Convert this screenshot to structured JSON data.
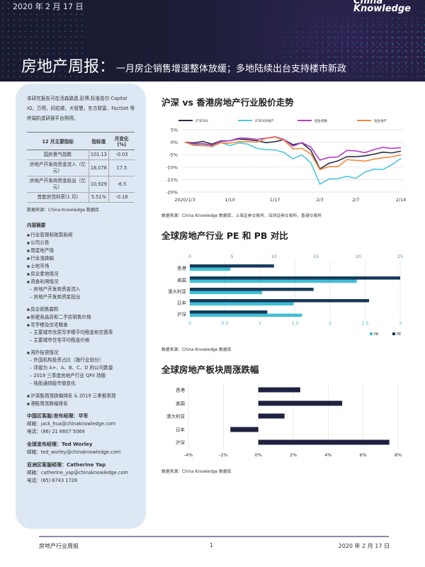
{
  "header": {
    "date": "2020 年 2 月 17 日",
    "logo": "China Knowledge",
    "title": "房地产周报：",
    "subtitle": "一月房企销售增速整体放缓；多地陆续出台支持楼市新政"
  },
  "sidebar": {
    "intro": "本研究报告可在汤森路透,彭博,标准普尔 Capital IQ，万得，同花顺，大智慧，东方财富、FactSet 等终端机或研报平台购得。",
    "table": {
      "headers": [
        "12 月主要指标",
        "指标值",
        "月变化 (%)"
      ],
      "rows": [
        [
          "国房景气指数",
          "101.13",
          "-0.03"
        ],
        [
          "房地产开发商资金流入（亿元）",
          "18,078",
          "17.5"
        ],
        [
          "房地产开发商资金投出（亿元）",
          "10,929",
          "-6.5"
        ],
        [
          "首套房贷利率(1 月)",
          "5.51%",
          "-0.18"
        ]
      ],
      "source": "数据来源：China Knowledge 数据库"
    },
    "toc_title": "内容摘要",
    "toc": [
      {
        "t": "行业宏观和政策新闻",
        "k": "b"
      },
      {
        "t": "公司公告",
        "k": "b"
      },
      {
        "t": "周度地产情",
        "k": "b"
      },
      {
        "t": "行业涨跌幅",
        "k": "b"
      },
      {
        "t": "土地市场",
        "k": "b"
      },
      {
        "t": "房企拿地情况",
        "k": "b"
      },
      {
        "t": "资金利用情况",
        "k": "b"
      },
      {
        "t": "房地产开发商资金流入",
        "k": "s"
      },
      {
        "t": "房地产开发商资金投出",
        "k": "s"
      },
      {
        "t": "",
        "k": "gap"
      },
      {
        "t": "房企销售面积",
        "k": "b"
      },
      {
        "t": "新建商品房和二手房销售价格",
        "k": "b"
      },
      {
        "t": "写字楼及住宅租金",
        "k": "b"
      },
      {
        "t": "主要城市优质写字楼平均租金和空置率",
        "k": "s"
      },
      {
        "t": "主要城市住宅平均租金价格",
        "k": "s"
      },
      {
        "t": "",
        "k": "gap"
      },
      {
        "t": "海外投资情况",
        "k": "b"
      },
      {
        "t": "外国机构投资占比（按行业划分）",
        "k": "s"
      },
      {
        "t": "评级为 A+、A、B、C、D 的公司数量",
        "k": "s"
      },
      {
        "t": "2019 三季度房地产行业 QFII 持股",
        "k": "s"
      },
      {
        "t": "陆股通持股市值变化",
        "k": "s"
      },
      {
        "t": "",
        "k": "gap"
      },
      {
        "t": "沪深股周涨跌幅排名 & 2019 三季报表现",
        "k": "b"
      },
      {
        "t": "港股周涨跌幅排名",
        "k": "b"
      }
    ],
    "contacts": [
      {
        "name": "中国区客服/发布经理：华军",
        "lines": [
          "邮箱：jack_hua@chinaknowledge.com",
          "电话：(86) 21 6607 5069"
        ]
      },
      {
        "name": "全球发布经理：Ted Worley",
        "lines": [
          "邮箱：ted_worley@chinaknowledge.com"
        ]
      },
      {
        "name": "亚洲区客服经理：Catherine Yap",
        "lines": [
          "邮箱：catherine_yap@chinaknowledge.com",
          "电话：(65) 6743 1728"
        ]
      }
    ]
  },
  "chart_data": [
    {
      "type": "line",
      "title": "沪深  vs  香港房地产行业股价走势",
      "x": [
        "2020/1/3",
        "1/6",
        "1/7",
        "1/8",
        "1/9",
        "1/10",
        "1/13",
        "1/14",
        "1/15",
        "1/16",
        "1/17",
        "1/20",
        "1/21",
        "1/22",
        "1/23",
        "2/3",
        "2/4",
        "2/5",
        "2/6",
        "2/7",
        "2/10",
        "2/11",
        "2/12",
        "2/13",
        "2/14"
      ],
      "xticks": [
        "2020/1/3",
        "1/10",
        "1/17",
        "2/3",
        "2/7",
        "2/14"
      ],
      "yticks": [
        "5%",
        "0%",
        "-5%",
        "-10%",
        "-15%",
        "-20%"
      ],
      "ylim": [
        -20,
        5
      ],
      "grid": true,
      "legend": "top",
      "series": [
        {
          "name": "沪深300",
          "color": "#2b2e45",
          "values": [
            0,
            -0.3,
            0.3,
            -0.8,
            0.5,
            0.6,
            1.3,
            1.0,
            0.6,
            -0.2,
            0.2,
            1.0,
            -1.0,
            -0.3,
            -3.3,
            -10.7,
            -8.5,
            -7.5,
            -5.8,
            -5.8,
            -5.5,
            -4.8,
            -4.0,
            -4.3,
            -3.6
          ]
        },
        {
          "name": "沪深300地产",
          "color": "#4ec6d8",
          "values": [
            0,
            -1.0,
            -0.8,
            -1.9,
            -0.1,
            -1.4,
            -0.3,
            -0.8,
            -2.5,
            -3.0,
            -3.1,
            -4.1,
            -6.7,
            -5.1,
            -8.3,
            -16.8,
            -14.8,
            -14.6,
            -13.7,
            -14.5,
            -12.0,
            -10.8,
            -11.0,
            -9.0,
            -6.5
          ]
        },
        {
          "name": "恒生指数",
          "color": "#b53cc9",
          "values": [
            0,
            -0.7,
            -0.6,
            -1.2,
            0.3,
            0.6,
            1.6,
            1.6,
            1.1,
            1.6,
            2.2,
            1.1,
            -1.6,
            -0.2,
            -2.0,
            -7.2,
            -6.1,
            -5.9,
            -3.3,
            -3.5,
            -4.2,
            -3.0,
            -2.1,
            -2.5,
            -2.2
          ]
        },
        {
          "name": "恒生地产",
          "color": "#f08a3c",
          "values": [
            0,
            -1.3,
            -1.4,
            -1.6,
            -0.3,
            -0.4,
            0.2,
            0.2,
            0.0,
            1.5,
            2.0,
            0.8,
            -2.7,
            -2.5,
            -4.7,
            -11.0,
            -9.8,
            -9.8,
            -7.0,
            -7.3,
            -7.6,
            -6.8,
            -6.2,
            -5.9,
            -5.1
          ]
        }
      ],
      "source": "数据来源：China Knowledge 数据库，上海证券交易所，深圳证券交易所，香港交易所"
    },
    {
      "type": "bar",
      "orientation": "horizontal",
      "title": "全球房地产行业  PE  和  PB  对比",
      "categories": [
        "香港",
        "美国",
        "澳大利亚",
        "日本",
        "沪深"
      ],
      "series": [
        {
          "name": "PE",
          "color": "#173a5a",
          "axis": "top",
          "xlim": [
            0,
            25
          ],
          "ticks": [
            "0",
            "5",
            "10",
            "15",
            "20",
            "25"
          ],
          "values": [
            10,
            25,
            14.7,
            21.3,
            9.2
          ]
        },
        {
          "name": "PB",
          "color": "#3ec0d4",
          "axis": "bottom",
          "xlim": [
            0,
            3
          ],
          "ticks": [
            "0",
            "0.5",
            "1",
            "1.5",
            "2",
            "2.5",
            "3"
          ],
          "values": [
            0.58,
            2.38,
            1.03,
            1.48,
            1.6
          ]
        }
      ],
      "legend": "bottom-right",
      "grid": true,
      "source": "数据来源：China Knowledge 数据库"
    },
    {
      "type": "bar",
      "orientation": "horizontal",
      "title": "全球房地产板块周涨跌幅",
      "categories": [
        "香港",
        "美国",
        "澳大利亚",
        "日本",
        "沪深"
      ],
      "values": [
        2.4,
        4.8,
        1.5,
        -1.6,
        7.5
      ],
      "color": "#1e2140",
      "xlim": [
        -4,
        8
      ],
      "ticks": [
        "-4%",
        "-2%",
        "0%",
        "2%",
        "4%",
        "6%",
        "8%"
      ],
      "grid": true,
      "source": "数据来源：China Knowledge 数据库"
    }
  ],
  "footer": {
    "left": "房地产行业周报",
    "page": "1",
    "right": "2020 年 2 月 17 日"
  }
}
